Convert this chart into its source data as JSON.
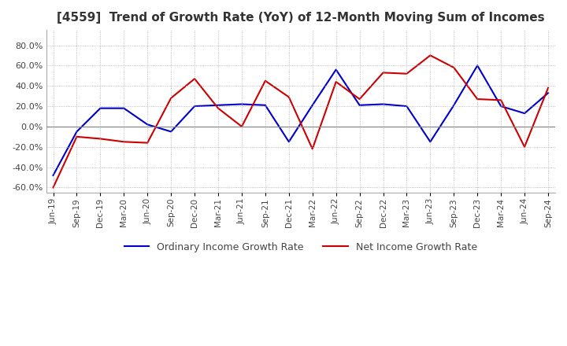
{
  "title": "[4559]  Trend of Growth Rate (YoY) of 12-Month Moving Sum of Incomes",
  "title_fontsize": 11,
  "ylim": [
    -65,
    95
  ],
  "yticks": [
    -60,
    -40,
    -20,
    0,
    20,
    40,
    60,
    80
  ],
  "background_color": "#ffffff",
  "grid_color": "#aaaaaa",
  "ordinary_color": "#0000cc",
  "net_color": "#cc0000",
  "x_labels": [
    "Jun-19",
    "Sep-19",
    "Dec-19",
    "Mar-20",
    "Jun-20",
    "Sep-20",
    "Dec-20",
    "Mar-21",
    "Jun-21",
    "Sep-21",
    "Dec-21",
    "Mar-22",
    "Jun-22",
    "Sep-22",
    "Dec-22",
    "Mar-23",
    "Jun-23",
    "Sep-23",
    "Dec-23",
    "Mar-24",
    "Jun-24",
    "Sep-24"
  ],
  "ordinary_income": [
    -48,
    -5,
    18,
    18,
    2,
    -5,
    20,
    21,
    22,
    21,
    -15,
    21,
    56,
    21,
    22,
    20,
    -15,
    21,
    60,
    20,
    13,
    33
  ],
  "net_income": [
    -60,
    -10,
    -12,
    -15,
    -16,
    28,
    47,
    18,
    0,
    45,
    29,
    -22,
    44,
    27,
    53,
    52,
    70,
    58,
    27,
    26,
    -20,
    38
  ],
  "legend_labels": [
    "Ordinary Income Growth Rate",
    "Net Income Growth Rate"
  ]
}
